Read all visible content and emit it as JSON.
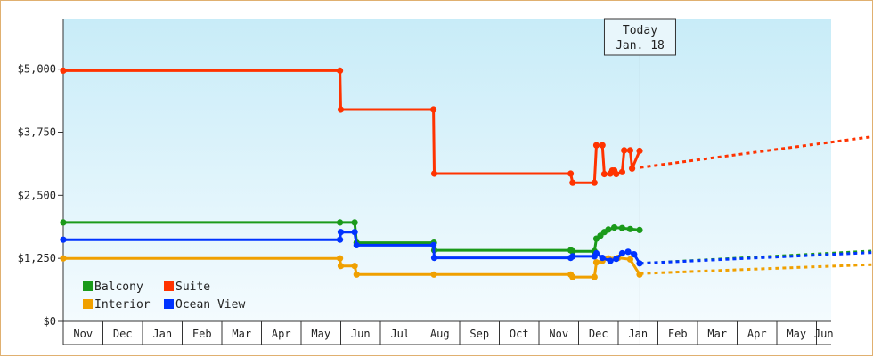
{
  "chart_data": {
    "type": "line",
    "title": "",
    "xlabel": "",
    "ylabel": "",
    "ylim": [
      0,
      6000
    ],
    "y_ticks": [
      "$0",
      "$1,250",
      "$2,500",
      "$3,750",
      "$5,000"
    ],
    "y_tick_values": [
      0,
      1250,
      2500,
      3750,
      5000
    ],
    "x_ticks": [
      "Nov",
      "Dec",
      "Jan",
      "Feb",
      "Mar",
      "Apr",
      "May",
      "Jun",
      "Jul",
      "Aug",
      "Sep",
      "Oct",
      "Nov",
      "Dec",
      "Jan",
      "Feb",
      "Mar",
      "Apr",
      "May",
      "Jun"
    ],
    "today": {
      "line1": "Today",
      "line2": "Jan. 18",
      "x": 14.55
    },
    "legend": {
      "position": "bottom-left"
    },
    "series": [
      {
        "name": "Balcony",
        "color": "#1a9a1a",
        "points": [
          [
            0,
            1960
          ],
          [
            6.98,
            1960
          ],
          [
            7.35,
            1960
          ],
          [
            7.4,
            1560
          ],
          [
            9.35,
            1560
          ],
          [
            9.36,
            1410
          ],
          [
            12.8,
            1410
          ],
          [
            12.85,
            1390
          ],
          [
            13.4,
            1390
          ],
          [
            13.45,
            1640
          ],
          [
            13.55,
            1700
          ],
          [
            13.65,
            1770
          ],
          [
            13.75,
            1820
          ],
          [
            13.9,
            1860
          ],
          [
            14.1,
            1850
          ],
          [
            14.3,
            1830
          ],
          [
            14.54,
            1810
          ]
        ],
        "forecast": [
          [
            14.55,
            1150
          ],
          [
            20.5,
            1400
          ]
        ]
      },
      {
        "name": "Suite",
        "color": "#ff3300",
        "points": [
          [
            0,
            4970
          ],
          [
            6.98,
            4970
          ],
          [
            7.0,
            4200
          ],
          [
            9.34,
            4200
          ],
          [
            9.36,
            2930
          ],
          [
            12.8,
            2930
          ],
          [
            12.85,
            2750
          ],
          [
            13.4,
            2750
          ],
          [
            13.45,
            3490
          ],
          [
            13.6,
            3490
          ],
          [
            13.65,
            2920
          ],
          [
            13.8,
            2930
          ],
          [
            13.85,
            2990
          ],
          [
            13.9,
            2990
          ],
          [
            13.95,
            2920
          ],
          [
            14.1,
            2960
          ],
          [
            14.15,
            3390
          ],
          [
            14.3,
            3390
          ],
          [
            14.35,
            3030
          ],
          [
            14.54,
            3380
          ]
        ],
        "forecast": [
          [
            14.55,
            3050
          ],
          [
            20.5,
            3670
          ]
        ]
      },
      {
        "name": "Interior",
        "color": "#f0a000",
        "points": [
          [
            0,
            1250
          ],
          [
            6.98,
            1250
          ],
          [
            7.0,
            1100
          ],
          [
            7.35,
            1100
          ],
          [
            7.4,
            930
          ],
          [
            9.35,
            930
          ],
          [
            12.8,
            930
          ],
          [
            12.85,
            880
          ],
          [
            13.4,
            880
          ],
          [
            13.45,
            1170
          ],
          [
            13.6,
            1200
          ],
          [
            13.75,
            1250
          ],
          [
            14.0,
            1260
          ],
          [
            14.3,
            1230
          ],
          [
            14.54,
            930
          ]
        ],
        "forecast": [
          [
            14.55,
            950
          ],
          [
            20.5,
            1130
          ]
        ]
      },
      {
        "name": "Ocean View",
        "color": "#0033ff",
        "points": [
          [
            0,
            1620
          ],
          [
            6.98,
            1620
          ],
          [
            7.0,
            1770
          ],
          [
            7.35,
            1770
          ],
          [
            7.4,
            1510
          ],
          [
            9.34,
            1510
          ],
          [
            9.36,
            1260
          ],
          [
            12.8,
            1260
          ],
          [
            12.85,
            1290
          ],
          [
            13.4,
            1290
          ],
          [
            13.45,
            1350
          ],
          [
            13.6,
            1260
          ],
          [
            13.8,
            1200
          ],
          [
            13.95,
            1240
          ],
          [
            14.1,
            1350
          ],
          [
            14.25,
            1380
          ],
          [
            14.4,
            1330
          ],
          [
            14.54,
            1150
          ]
        ],
        "forecast": [
          [
            14.55,
            1150
          ],
          [
            20.5,
            1370
          ]
        ]
      }
    ]
  }
}
